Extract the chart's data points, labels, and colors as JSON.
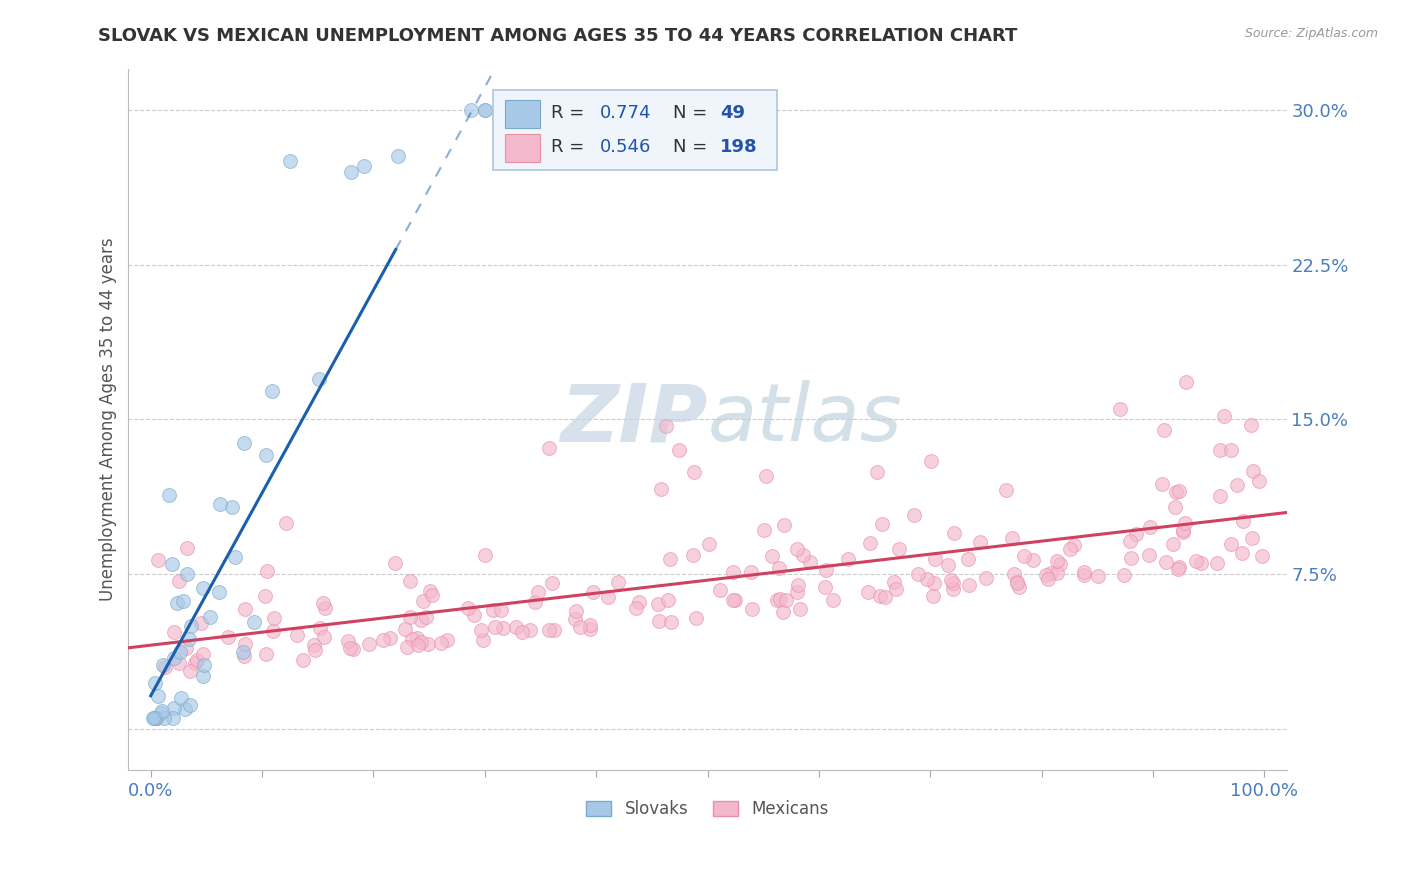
{
  "title": "SLOVAK VS MEXICAN UNEMPLOYMENT AMONG AGES 35 TO 44 YEARS CORRELATION CHART",
  "source_text": "Source: ZipAtlas.com",
  "ylabel": "Unemployment Among Ages 35 to 44 years",
  "xlim": [
    -0.02,
    1.02
  ],
  "ylim": [
    -0.02,
    0.32
  ],
  "y_ticks": [
    0.0,
    0.075,
    0.15,
    0.225,
    0.3
  ],
  "y_tick_labels": [
    "",
    "7.5%",
    "15.0%",
    "22.5%",
    "30.0%"
  ],
  "x_tick_positions": [
    0.0,
    0.1,
    0.2,
    0.3,
    0.4,
    0.5,
    0.6,
    0.7,
    0.8,
    0.9,
    1.0
  ],
  "x_tick_labels": [
    "0.0%",
    "",
    "",
    "",
    "",
    "",
    "",
    "",
    "",
    "",
    "100.0%"
  ],
  "background_color": "#ffffff",
  "plot_bg_color": "#ffffff",
  "grid_color": "#cccccc",
  "title_color": "#333333",
  "axis_label_color": "#555555",
  "tick_label_color": "#4a7dbf",
  "slovak_fill_color": "#a8c8e8",
  "mexican_fill_color": "#f4b8cc",
  "slovak_edge_color": "#7aaac8",
  "mexican_edge_color": "#e890a8",
  "slovak_line_color": "#1a5fac",
  "mexican_line_color": "#d04060",
  "legend_box_color": "#f0f4fb",
  "legend_border_color": "#b0c4de",
  "R_slovak": 0.774,
  "N_slovak": 49,
  "R_mexican": 0.546,
  "N_mexican": 198,
  "watermark_zip_color": "#c8d4e4",
  "watermark_atlas_color": "#b0c8e0",
  "legend_label_color": "#333333",
  "legend_value_color": "#2255aa",
  "dot_size": 100,
  "dot_alpha": 0.65
}
